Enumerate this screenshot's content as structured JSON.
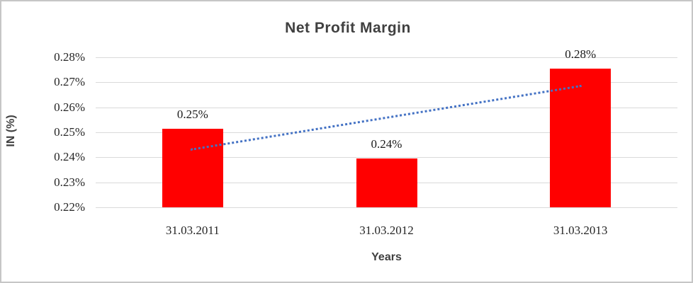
{
  "chart_data": {
    "type": "bar",
    "title": "Net Profit Margin",
    "xlabel": "Years",
    "ylabel": "IN (%)",
    "categories": [
      "31.03.2011",
      "31.03.2012",
      "31.03.2013"
    ],
    "values": [
      0.2515,
      0.2395,
      0.2755
    ],
    "data_labels": [
      "0.25%",
      "0.24%",
      "0.28%"
    ],
    "ylim": [
      0.22,
      0.28
    ],
    "ytick_step": 0.01,
    "ytick_labels": [
      "0.22%",
      "0.23%",
      "0.24%",
      "0.25%",
      "0.26%",
      "0.27%",
      "0.28%"
    ],
    "grid": true,
    "legend": "none",
    "bar_color": "#ff0000",
    "gridline_color": "#d9d9d9",
    "trendline": {
      "style": "dotted",
      "color": "#4472c4",
      "start_value": 0.2435,
      "end_value": 0.269
    }
  },
  "styles": {
    "title_color": "#404040",
    "axis_title_color": "#404040",
    "tick_label_color": "#262626",
    "frame_border_color": "#c6c6c6"
  }
}
